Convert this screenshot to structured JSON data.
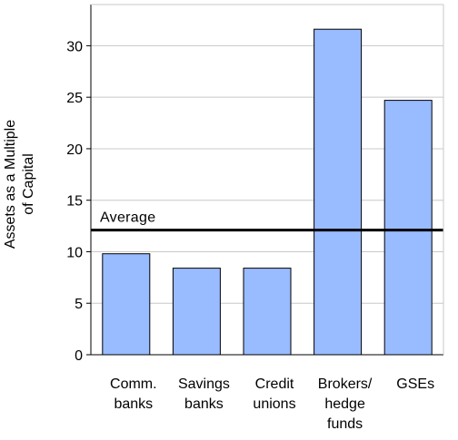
{
  "chart_data": {
    "type": "bar",
    "title": "",
    "ylabel_lines": [
      "Assets as a Multiple",
      "of Capital"
    ],
    "xlabel": "",
    "categories": [
      [
        "Comm.",
        "banks"
      ],
      [
        "Savings",
        "banks"
      ],
      [
        "Credit",
        "unions"
      ],
      [
        "Brokers/",
        "hedge",
        "funds"
      ],
      [
        "GSEs"
      ]
    ],
    "values": [
      9.8,
      8.4,
      8.4,
      31.6,
      24.7
    ],
    "ylim": [
      0,
      34
    ],
    "yticks": [
      0,
      5,
      10,
      15,
      20,
      25,
      30
    ],
    "grid": true,
    "bar_color": "#99bbff",
    "reference_line": {
      "label": "Average",
      "value": 12.1,
      "color": "#000000"
    }
  }
}
